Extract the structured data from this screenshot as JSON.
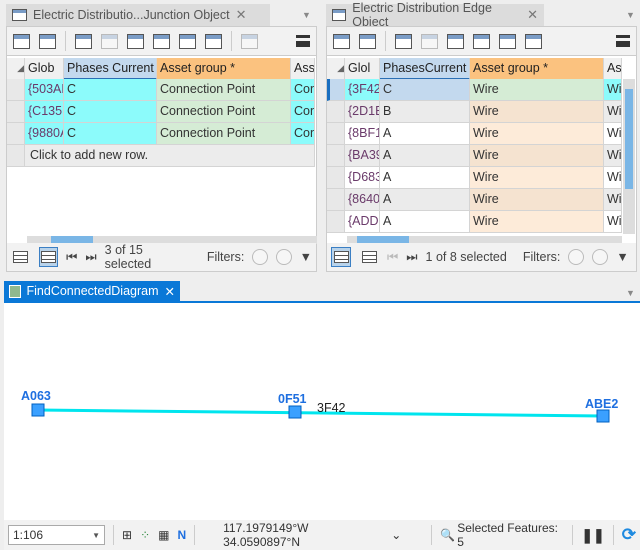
{
  "left_table": {
    "tab_title": "Electric Distributio...Junction Object",
    "columns": [
      "Glob",
      "Phases Current",
      "Asset group *",
      "Ass"
    ],
    "rows": [
      [
        "{503AE",
        "C",
        "Connection Point",
        "Con"
      ],
      [
        "{C135E",
        "C",
        "Connection Point",
        "Con"
      ],
      [
        "{9880A",
        "C",
        "Connection Point",
        "Con"
      ]
    ],
    "add_row": "Click to add new row.",
    "selection": "3 of 15 selected",
    "filters_label": "Filters:"
  },
  "right_table": {
    "tab_title": "Electric Distribution Edge Object",
    "columns": [
      "Glol",
      "PhasesCurrent",
      "Asset group *",
      "As"
    ],
    "rows": [
      [
        "{3F42",
        "C",
        "Wire",
        "Wi"
      ],
      [
        "{2D1E",
        "B",
        "Wire",
        "Wi"
      ],
      [
        "{8BF1",
        "A",
        "Wire",
        "Wi"
      ],
      [
        "{BA39",
        "A",
        "Wire",
        "Wi"
      ],
      [
        "{D683",
        "A",
        "Wire",
        "Wi"
      ],
      [
        "{8640",
        "A",
        "Wire",
        "Wi"
      ],
      [
        "{ADD",
        "A",
        "Wire",
        "Wi"
      ]
    ],
    "selection": "1 of 8 selected",
    "filters_label": "Filters:"
  },
  "diagram": {
    "tab_title": "FindConnectedDiagram",
    "nodes": [
      "A063",
      "0F51",
      "ABE2"
    ],
    "edge_label": "3F42",
    "edge_color": "#00e5ee",
    "node_color": "#1e90ff"
  },
  "status": {
    "scale": "1:106",
    "coordinates": "117.1979149°W 34.0590897°N",
    "selected_features": "Selected Features: 5"
  },
  "colors": {
    "accent": "#0a78d7",
    "cyan": "#8cfbfb",
    "asset_header": "#fbc27f"
  }
}
